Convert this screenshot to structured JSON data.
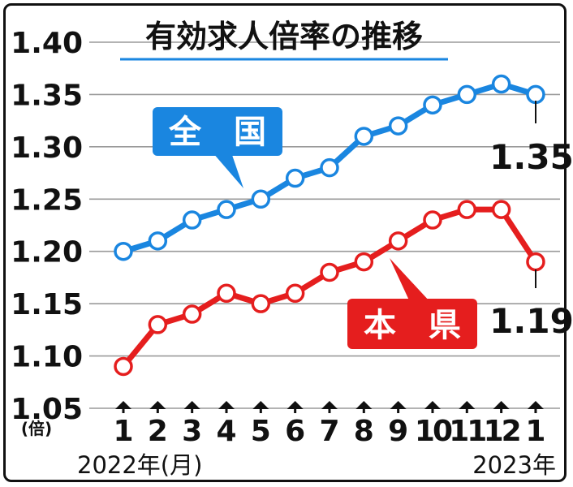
{
  "chart_data": {
    "type": "line",
    "title": "有効求人倍率の推移",
    "y_unit_label": "(倍)",
    "ylim": [
      1.05,
      1.4
    ],
    "y_ticks": [
      "1.40",
      "1.35",
      "1.30",
      "1.25",
      "1.20",
      "1.15",
      "1.10",
      "1.05"
    ],
    "y_tick_values": [
      1.4,
      1.35,
      1.3,
      1.25,
      1.2,
      1.15,
      1.1,
      1.05
    ],
    "categories": [
      "1",
      "2",
      "3",
      "4",
      "5",
      "6",
      "7",
      "8",
      "9",
      "10",
      "11",
      "12",
      "1"
    ],
    "x_start_label": "2022年(月)",
    "x_end_label": "2023年",
    "grid": "horizontal",
    "series": [
      {
        "name": "全　国",
        "color": "#1a86e0",
        "values": [
          1.2,
          1.21,
          1.23,
          1.24,
          1.25,
          1.27,
          1.28,
          1.31,
          1.32,
          1.34,
          1.35,
          1.36,
          1.35
        ],
        "end_label": "1.35"
      },
      {
        "name": "本　県",
        "color": "#e51e1e",
        "values": [
          1.09,
          1.13,
          1.14,
          1.16,
          1.15,
          1.16,
          1.18,
          1.19,
          1.21,
          1.23,
          1.24,
          1.24,
          1.19
        ],
        "end_label": "1.19"
      }
    ]
  }
}
